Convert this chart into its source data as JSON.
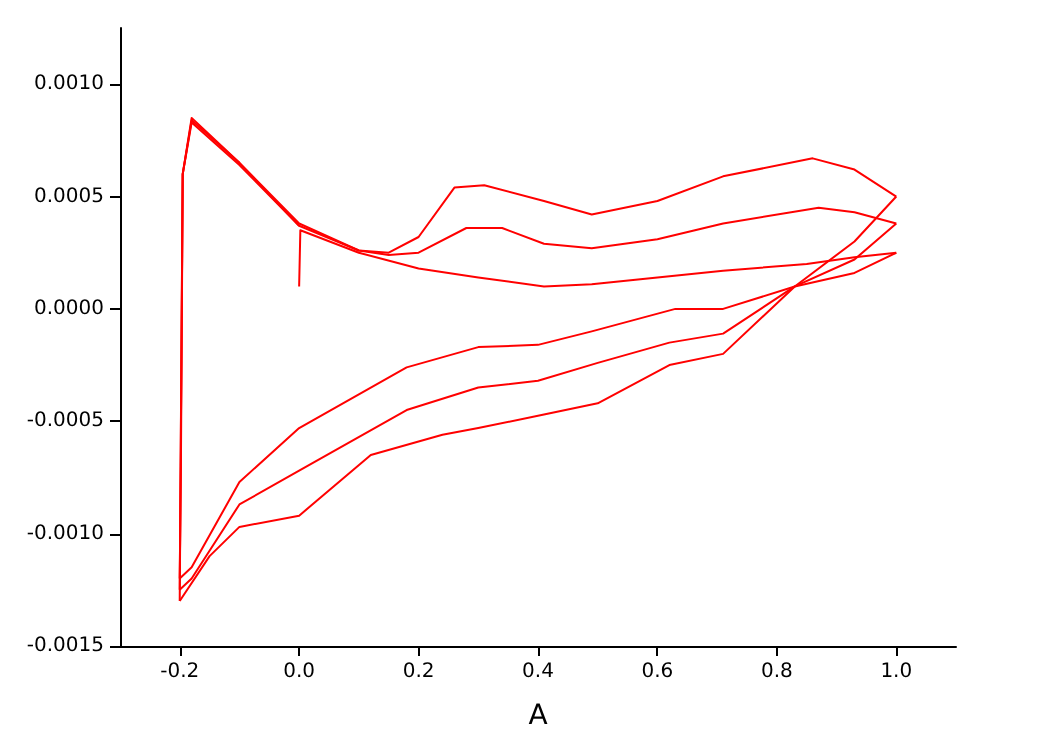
{
  "chart_data": {
    "type": "line",
    "xlabel": "A",
    "xlim": [
      -0.3,
      1.1
    ],
    "ylim": [
      -0.0015,
      0.00125
    ],
    "xticks": [
      {
        "value": -0.2,
        "label": "-0.2"
      },
      {
        "value": 0,
        "label": "0.0"
      },
      {
        "value": 0.2,
        "label": "0.2"
      },
      {
        "value": 0.4,
        "label": "0.4"
      },
      {
        "value": 0.6,
        "label": "0.6"
      },
      {
        "value": 0.8,
        "label": "0.8"
      },
      {
        "value": 1.0,
        "label": "1.0"
      }
    ],
    "yticks": [
      {
        "value": -0.0015,
        "label": "-0.0015"
      },
      {
        "value": -0.001,
        "label": "-0.0010"
      },
      {
        "value": -0.0005,
        "label": "-0.0005"
      },
      {
        "value": 0,
        "label": "0.0000"
      },
      {
        "value": 0.0005,
        "label": "0.0005"
      },
      {
        "value": 0.001,
        "label": "0.0010"
      }
    ],
    "grid": false,
    "marker": "none",
    "line_style": "solid",
    "series": [
      {
        "color": "#ff0000",
        "x": [
          0,
          0.002,
          0.1,
          0.2,
          0.3,
          0.41,
          0.49,
          0.6,
          0.71,
          0.85,
          0.93,
          1.0
        ],
        "values": [
          0.0001,
          0.00035,
          0.00025,
          0.00018,
          0.00014,
          0.0001,
          0.00011,
          0.00014,
          0.00017,
          0.0002,
          0.00023,
          0.00025
        ]
      },
      {
        "color": "#ff0000",
        "x": [
          1.0,
          0.93,
          0.83,
          0.71,
          0.63,
          0.49,
          0.4,
          0.3,
          0.18,
          0,
          -0.1,
          -0.18,
          -0.2
        ],
        "values": [
          0.00025,
          0.00016,
          0.0001,
          0,
          0,
          -0.0001,
          -0.00016,
          -0.00017,
          -0.00026,
          -0.00053,
          -0.00077,
          -0.00115,
          -0.0012
        ]
      },
      {
        "color": "#ff0000",
        "x": [
          -0.2,
          -0.198,
          -0.195,
          -0.18,
          -0.1,
          0
        ],
        "values": [
          -0.0012,
          -0.0007,
          0.0006,
          0.00083,
          0.00064,
          0.00037
        ]
      },
      {
        "color": "#ff0000",
        "x": [
          -0.2,
          -0.195,
          -0.18,
          -0.1,
          0,
          0.1,
          0.15,
          0.2,
          0.28,
          0.34,
          0.41,
          0.49,
          0.6,
          0.71,
          0.87,
          0.93,
          1.0
        ],
        "values": [
          -0.00125,
          0.0006,
          0.00084,
          0.00065,
          0.00037,
          0.00026,
          0.00024,
          0.00025,
          0.00036,
          0.00036,
          0.00029,
          0.00027,
          0.00031,
          0.00038,
          0.00045,
          0.00043,
          0.00038
        ]
      },
      {
        "color": "#ff0000",
        "x": [
          1.0,
          0.93,
          0.83,
          0.71,
          0.62,
          0.5,
          0.4,
          0.3,
          0.18,
          0,
          -0.1,
          -0.18,
          -0.2
        ],
        "values": [
          0.00038,
          0.00022,
          0.0001,
          -0.00011,
          -0.00015,
          -0.00024,
          -0.00032,
          -0.00035,
          -0.00045,
          -0.00072,
          -0.00087,
          -0.0012,
          -0.00125
        ]
      },
      {
        "color": "#ff0000",
        "x": [
          -0.2,
          -0.195,
          -0.18,
          -0.1,
          0,
          0.1,
          0.15,
          0.2,
          0.26,
          0.31,
          0.41,
          0.49,
          0.6,
          0.71,
          0.86,
          0.93,
          1.0
        ],
        "values": [
          -0.0013,
          0.0006,
          0.00085,
          0.00065,
          0.00038,
          0.00026,
          0.00025,
          0.00032,
          0.00054,
          0.00055,
          0.00048,
          0.00042,
          0.00048,
          0.00059,
          0.00067,
          0.00062,
          0.0005
        ]
      },
      {
        "color": "#ff0000",
        "x": [
          1.0,
          0.93,
          0.83,
          0.71,
          0.62,
          0.5,
          0.41,
          0.3,
          0.24,
          0.12,
          0,
          -0.1,
          -0.15,
          -0.2
        ],
        "values": [
          0.0005,
          0.0003,
          0.0001,
          -0.0002,
          -0.00025,
          -0.00042,
          -0.00047,
          -0.00053,
          -0.00056,
          -0.00065,
          -0.00092,
          -0.00097,
          -0.0011,
          -0.0013
        ]
      }
    ]
  }
}
